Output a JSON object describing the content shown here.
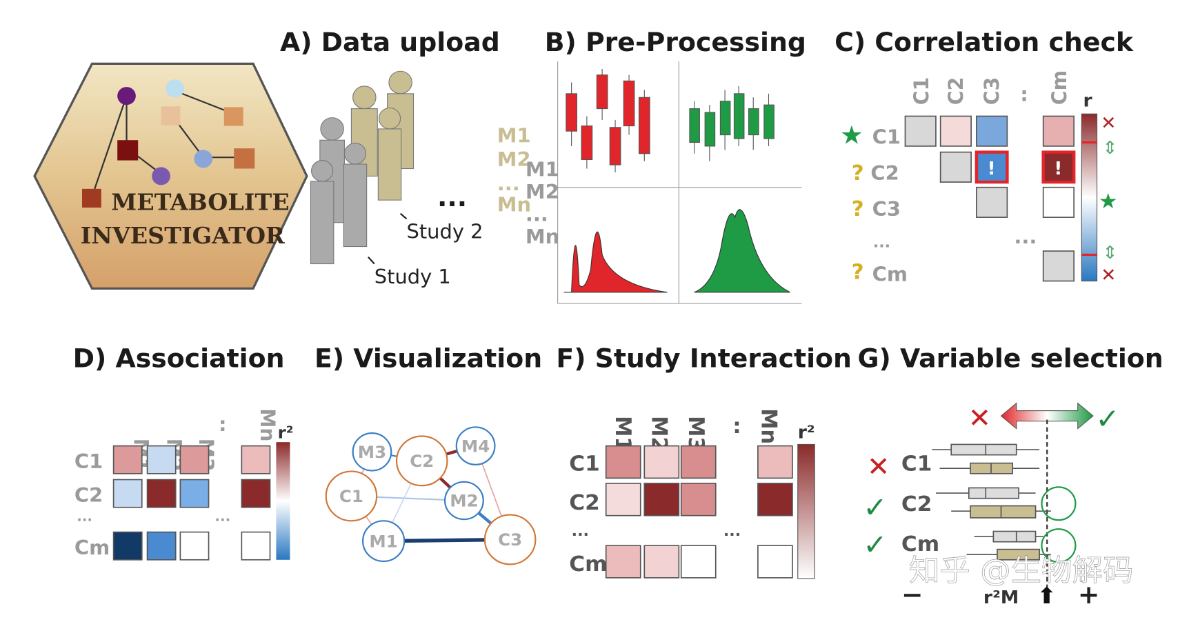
{
  "logo": {
    "line1": "METABOLITE",
    "line2": "INVESTIGATOR"
  },
  "panels": {
    "a": {
      "title": "A) Data upload",
      "study1": "Study 1",
      "study2": "Study 2",
      "ellipsis": "..."
    },
    "b": {
      "title": "B) Pre-Processing",
      "labels": [
        "M1",
        "M2",
        "...",
        "Mn"
      ],
      "labels2": [
        "M1",
        "M2",
        "...",
        "Mn"
      ]
    },
    "c": {
      "title": "C) Correlation check",
      "columns": [
        "C1",
        "C2",
        "C3",
        ":",
        "Cm"
      ],
      "rows": [
        "C1",
        "C2",
        "C3",
        "...",
        "Cm"
      ],
      "bar_label": "r",
      "alert": "!",
      "ellipsis": "..."
    },
    "d": {
      "title": "D) Association",
      "columns": [
        "M1",
        "M2",
        "M3",
        ":",
        "Mn"
      ],
      "rows": [
        "C1",
        "C2",
        "...",
        "Cm"
      ],
      "bar_label": "r²",
      "ellipsis": "..."
    },
    "e": {
      "title": "E) Visualization",
      "nodes": [
        "M3",
        "C2",
        "M4",
        "C1",
        "M2",
        "M1",
        "C3"
      ]
    },
    "f": {
      "title": "F) Study Interaction",
      "columns": [
        "M1",
        "M2",
        "M3",
        ":",
        "Mn"
      ],
      "rows": [
        "C1",
        "C2",
        "...",
        "Cm"
      ],
      "bar_label": "r²",
      "ellipsis": "..."
    },
    "g": {
      "title": "G) Variable selection",
      "rows": [
        "C1",
        "C2",
        "Cm"
      ],
      "axis": {
        "minus": "−",
        "label": "r²M",
        "plus": "+"
      }
    }
  },
  "colors": {
    "red": "#e0262a",
    "green": "#1f9a45",
    "dark_red": "#8b2a2a",
    "blue": "#3b7fc4",
    "tan": "#c9bd92"
  },
  "watermark": "知乎 @生物解码"
}
